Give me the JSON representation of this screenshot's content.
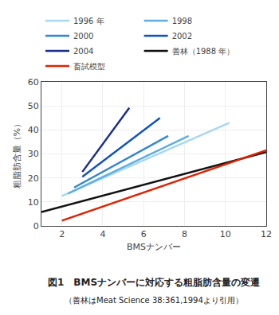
{
  "chart_data": {
    "type": "line",
    "xlabel": "BMSナンバー",
    "ylabel": "粗脂肪含量（%）",
    "annotations": [
      "図1　BMSナンバーに対応する粗脂肪含量の変遷",
      "（善林はMeat Science 38:361,1994より引用）"
    ],
    "xlim": [
      1,
      12
    ],
    "ylim": [
      0,
      60
    ],
    "xticks": [
      2,
      4,
      6,
      8,
      10,
      12
    ],
    "yticks": [
      0,
      10,
      20,
      30,
      40,
      50,
      60
    ],
    "grid": true,
    "legend": "upper left",
    "series": [
      {
        "name": "1996 年",
        "color": "#a8d8f0",
        "x": [
          2.0,
          10.2
        ],
        "values": [
          12.5,
          43.0
        ]
      },
      {
        "name": "1998",
        "color": "#60aee0",
        "x": [
          2.3,
          8.2
        ],
        "values": [
          13.5,
          37.5
        ]
      },
      {
        "name": "2000",
        "color": "#3388cc",
        "x": [
          2.6,
          7.2
        ],
        "values": [
          16.0,
          37.5
        ]
      },
      {
        "name": "2002",
        "color": "#1155bb",
        "x": [
          3.0,
          6.8
        ],
        "values": [
          20.5,
          45.0
        ]
      },
      {
        "name": "2004",
        "color": "#1a2f8a",
        "x": [
          3.0,
          5.3
        ],
        "values": [
          22.5,
          49.2
        ]
      },
      {
        "name": "善林（1988 年）",
        "color": "#111111",
        "x": [
          1.0,
          12.0
        ],
        "values": [
          5.8,
          30.8
        ]
      },
      {
        "name": "畜試模型",
        "color": "#dd2200",
        "x": [
          2.0,
          12.0
        ],
        "values": [
          2.2,
          31.5
        ]
      }
    ]
  }
}
